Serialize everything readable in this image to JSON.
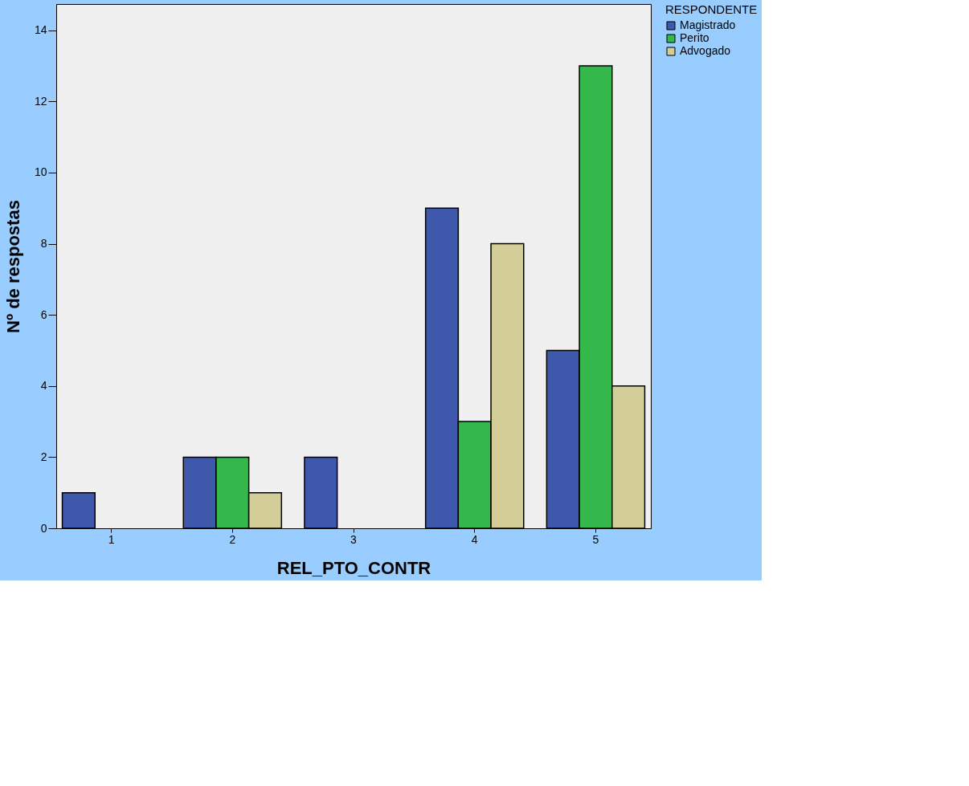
{
  "chart_data": {
    "type": "bar",
    "xlabel": "REL_PTO_CONTR",
    "ylabel": "Nº de respostas",
    "legend_title": "RESPONDENTE",
    "legend": "right",
    "grid": false,
    "categories": [
      "1",
      "2",
      "3",
      "4",
      "5"
    ],
    "ylim": [
      0,
      14.74
    ],
    "yticks": [
      0,
      2,
      4,
      6,
      8,
      10,
      12,
      14
    ],
    "series": [
      {
        "name": "Magistrado",
        "color": "#3e58ac",
        "values": [
          1,
          2,
          2,
          9,
          5
        ]
      },
      {
        "name": "Perito",
        "color": "#34b84c",
        "values": [
          null,
          2,
          null,
          3,
          13
        ]
      },
      {
        "name": "Advogado",
        "color": "#d3ce97",
        "values": [
          null,
          1,
          null,
          8,
          4
        ]
      }
    ]
  }
}
